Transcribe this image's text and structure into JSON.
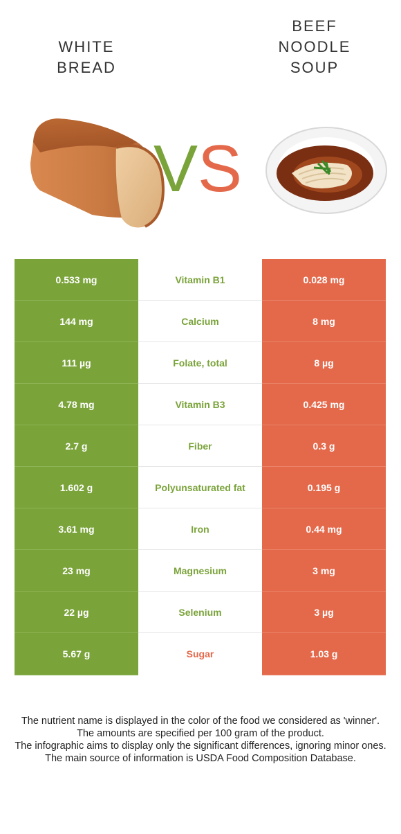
{
  "left_food": {
    "name": "WHITE\nBREAD"
  },
  "right_food": {
    "name": "BEEF\nNOODLE\nSOUP"
  },
  "vs": {
    "v": "V",
    "s": "S"
  },
  "colors": {
    "left": "#7aa33a",
    "right": "#e4694b"
  },
  "nutrients": [
    {
      "left": "0.533 mg",
      "name": "Vitamin B1",
      "right": "0.028 mg",
      "winner": "left"
    },
    {
      "left": "144 mg",
      "name": "Calcium",
      "right": "8 mg",
      "winner": "left"
    },
    {
      "left": "111 µg",
      "name": "Folate, total",
      "right": "8 µg",
      "winner": "left"
    },
    {
      "left": "4.78 mg",
      "name": "Vitamin B3",
      "right": "0.425 mg",
      "winner": "left"
    },
    {
      "left": "2.7 g",
      "name": "Fiber",
      "right": "0.3 g",
      "winner": "left"
    },
    {
      "left": "1.602 g",
      "name": "Polyunsaturated fat",
      "right": "0.195 g",
      "winner": "left"
    },
    {
      "left": "3.61 mg",
      "name": "Iron",
      "right": "0.44 mg",
      "winner": "left"
    },
    {
      "left": "23 mg",
      "name": "Magnesium",
      "right": "3 mg",
      "winner": "left"
    },
    {
      "left": "22 µg",
      "name": "Selenium",
      "right": "3 µg",
      "winner": "left"
    },
    {
      "left": "5.67 g",
      "name": "Sugar",
      "right": "1.03 g",
      "winner": "right"
    }
  ],
  "footnotes": [
    "The nutrient name is displayed in the color of the food we considered as 'winner'.",
    "The amounts are specified per 100 gram of the product.",
    "The infographic aims to display only the significant differences, ignoring minor ones.",
    "The main source of information is USDA Food Composition Database."
  ]
}
